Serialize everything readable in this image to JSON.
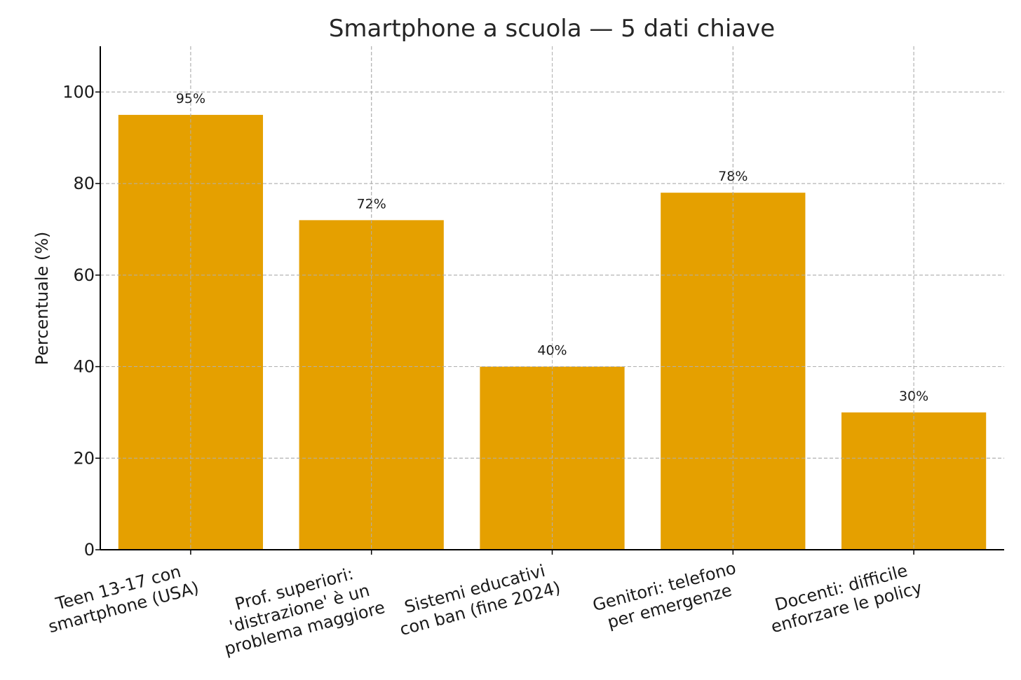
{
  "chart_data": {
    "type": "bar",
    "title": "Smartphone a scuola — 5 dati chiave",
    "xlabel": "",
    "ylabel": "Percentuale (%)",
    "ylim": [
      0,
      110
    ],
    "yticks": [
      0,
      20,
      40,
      60,
      80,
      100
    ],
    "grid": true,
    "bar_color": "#e5a000",
    "categories": [
      [
        "Teen 13-17 con",
        "smartphone (USA)"
      ],
      [
        "Prof. superiori:",
        "'distrazione' è un",
        "problema maggiore"
      ],
      [
        "Sistemi educativi",
        "con ban (fine 2024)"
      ],
      [
        "Genitori: telefono",
        "per emergenze"
      ],
      [
        "Docenti: difficile",
        "enforzare le policy"
      ]
    ],
    "values": [
      95,
      72,
      40,
      78,
      30
    ],
    "data_labels": [
      "95%",
      "72%",
      "40%",
      "78%",
      "30%"
    ]
  }
}
